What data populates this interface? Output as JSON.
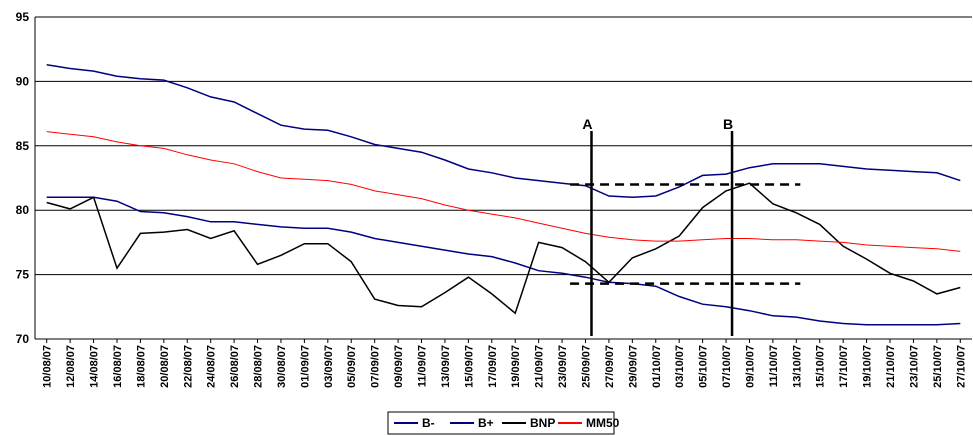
{
  "chart_data": {
    "type": "line",
    "title": "",
    "xlabel": "",
    "ylabel": "",
    "ylim": [
      70,
      95
    ],
    "yticks": [
      70,
      75,
      80,
      85,
      90,
      95
    ],
    "grid": true,
    "legend_position": "bottom-center",
    "x": [
      "10/08/07",
      "12/08/07",
      "14/08/07",
      "16/08/07",
      "18/08/07",
      "20/08/07",
      "22/08/07",
      "24/08/07",
      "26/08/07",
      "28/08/07",
      "30/08/07",
      "01/09/07",
      "03/09/07",
      "05/09/07",
      "07/09/07",
      "09/09/07",
      "11/09/07",
      "13/09/07",
      "15/09/07",
      "17/09/07",
      "19/09/07",
      "21/09/07",
      "23/09/07",
      "25/09/07",
      "27/09/07",
      "29/09/07",
      "01/10/07",
      "03/10/07",
      "05/10/07",
      "07/10/07",
      "09/10/07",
      "11/10/07",
      "13/10/07",
      "15/10/07",
      "17/10/07",
      "19/10/07",
      "21/10/07",
      "23/10/07",
      "25/10/07",
      "27/10/07"
    ],
    "series": [
      {
        "name": "B-",
        "color": "#000080",
        "values": [
          81.0,
          81.0,
          81.0,
          80.7,
          79.9,
          79.8,
          79.5,
          79.1,
          79.1,
          78.9,
          78.7,
          78.6,
          78.6,
          78.3,
          77.8,
          77.5,
          77.2,
          76.9,
          76.6,
          76.4,
          75.9,
          75.3,
          75.1,
          74.8,
          74.4,
          74.3,
          74.1,
          73.3,
          72.7,
          72.5,
          72.2,
          71.8,
          71.7,
          71.4,
          71.2,
          71.1,
          71.1,
          71.1,
          71.1,
          71.2
        ]
      },
      {
        "name": "B+",
        "color": "#000080",
        "values": [
          91.3,
          91.0,
          90.8,
          90.4,
          90.2,
          90.1,
          89.5,
          88.8,
          88.4,
          87.5,
          86.6,
          86.3,
          86.2,
          85.7,
          85.1,
          84.8,
          84.5,
          83.9,
          83.2,
          82.9,
          82.5,
          82.3,
          82.1,
          81.9,
          81.1,
          81.0,
          81.1,
          81.8,
          82.7,
          82.8,
          83.3,
          83.6,
          83.6,
          83.6,
          83.4,
          83.2,
          83.1,
          83.0,
          82.9,
          82.3
        ]
      },
      {
        "name": "BNP",
        "color": "#000000",
        "values": [
          80.6,
          80.1,
          81.0,
          75.5,
          78.2,
          78.3,
          78.5,
          77.8,
          78.4,
          75.8,
          76.5,
          77.4,
          77.4,
          76.0,
          73.1,
          72.6,
          72.5,
          73.6,
          74.8,
          73.5,
          72.0,
          77.5,
          77.1,
          76.0,
          74.4,
          76.3,
          77.0,
          78.0,
          80.2,
          81.5,
          82.1,
          80.5,
          79.8,
          78.9,
          77.2,
          76.2,
          75.1,
          74.5,
          73.5,
          74.0
        ]
      },
      {
        "name": "MM50",
        "color": "#ff0000",
        "values": [
          86.1,
          85.9,
          85.7,
          85.3,
          85.0,
          84.8,
          84.3,
          83.9,
          83.6,
          83.0,
          82.5,
          82.4,
          82.3,
          82.0,
          81.5,
          81.2,
          80.9,
          80.4,
          80.0,
          79.7,
          79.4,
          79.0,
          78.6,
          78.2,
          77.9,
          77.7,
          77.6,
          77.6,
          77.7,
          77.8,
          77.8,
          77.7,
          77.7,
          77.6,
          77.5,
          77.3,
          77.2,
          77.1,
          77.0,
          76.8
        ]
      }
    ],
    "annotations": {
      "vertical_lines": [
        {
          "label": "A",
          "x_index": 23
        },
        {
          "label": "B",
          "x_index": 29
        }
      ],
      "dashed_levels": [
        {
          "y": 82.0,
          "from_index": 22,
          "to_index": 32
        },
        {
          "y": 74.3,
          "from_index": 22,
          "to_index": 32
        }
      ]
    }
  }
}
